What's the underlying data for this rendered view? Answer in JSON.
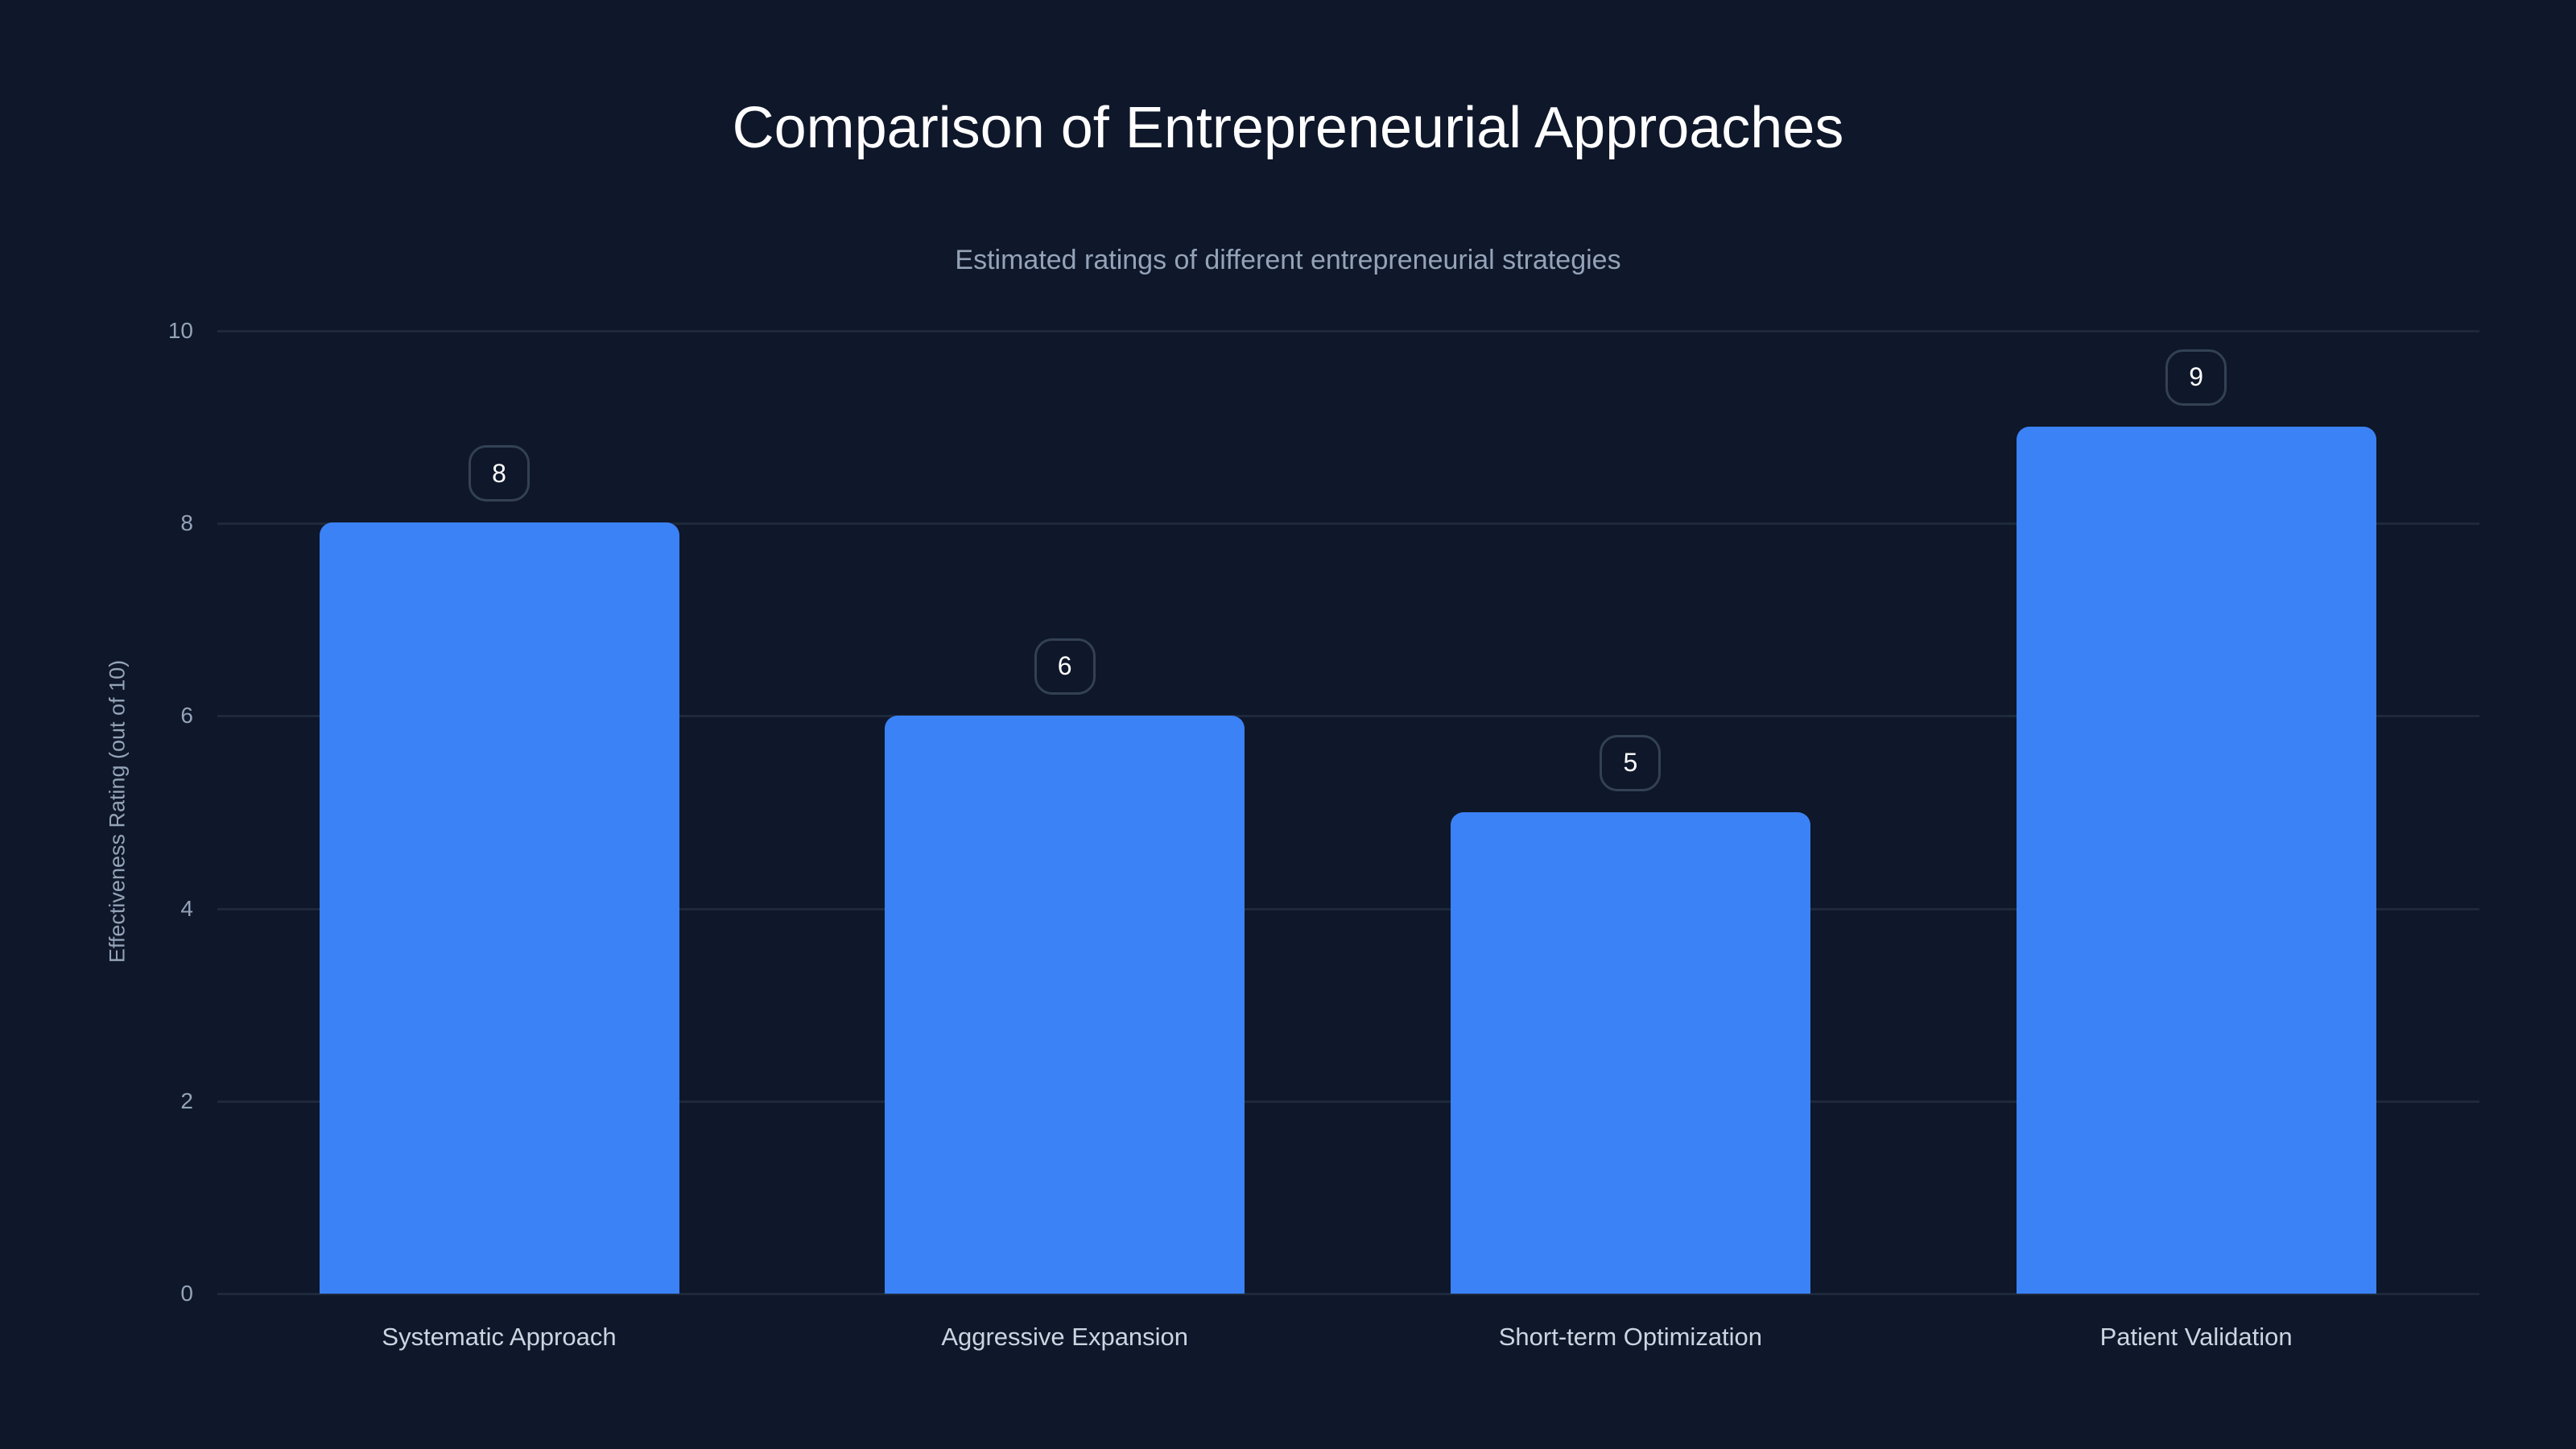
{
  "chart_data": {
    "type": "bar",
    "title": "Comparison of Entrepreneurial Approaches",
    "subtitle": "Estimated ratings of different entrepreneurial strategies",
    "xlabel": "",
    "ylabel": "Effectiveness Rating (out of 10)",
    "categories": [
      "Systematic Approach",
      "Aggressive Expansion",
      "Short-term Optimization",
      "Patient Validation"
    ],
    "values": [
      8,
      6,
      5,
      9
    ],
    "value_labels": [
      "8",
      "6",
      "5",
      "9"
    ],
    "ylim": [
      0,
      10
    ],
    "yticks": [
      "0",
      "2",
      "4",
      "6",
      "8",
      "10"
    ],
    "grid": true,
    "legend": null,
    "colors": {
      "background": "#0f172a",
      "bar": "#3b82f6",
      "grid": "#1e293b",
      "title": "#ffffff",
      "muted_text": "#94a3b8",
      "category_text": "#cbd5e1",
      "badge_border": "#334155"
    }
  }
}
